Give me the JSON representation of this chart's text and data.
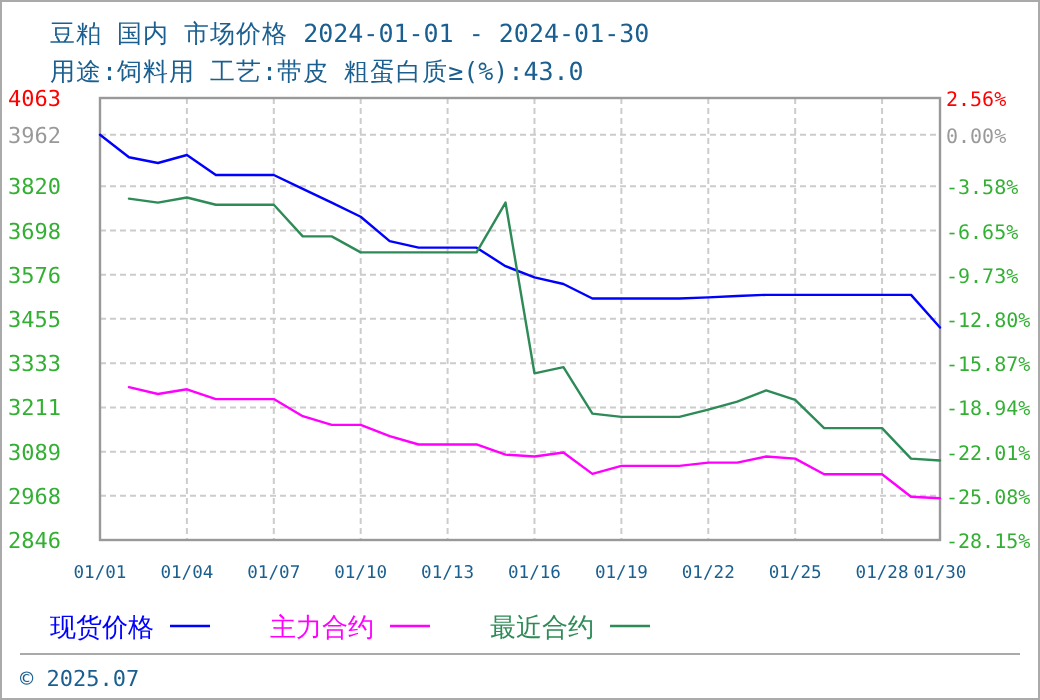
{
  "chart_data": {
    "type": "line",
    "title": "豆粕 国内 市场价格 2024-01-01 - 2024-01-30",
    "subtitle": "用途:饲料用 工艺:带皮 粗蛋白质≥(%):43.0",
    "x": [
      "2024-01-01",
      "2024-01-02",
      "2024-01-03",
      "2024-01-04",
      "2024-01-05",
      "2024-01-06",
      "2024-01-07",
      "2024-01-08",
      "2024-01-09",
      "2024-01-10",
      "2024-01-11",
      "2024-01-12",
      "2024-01-13",
      "2024-01-14",
      "2024-01-15",
      "2024-01-16",
      "2024-01-17",
      "2024-01-18",
      "2024-01-19",
      "2024-01-20",
      "2024-01-21",
      "2024-01-22",
      "2024-01-23",
      "2024-01-24",
      "2024-01-25",
      "2024-01-26",
      "2024-01-27",
      "2024-01-28",
      "2024-01-29",
      "2024-01-30"
    ],
    "series": [
      {
        "name": "现货价格",
        "color": "#0000ff",
        "values": [
          3962,
          3900,
          3884,
          3906,
          3851,
          3851,
          3851,
          3813,
          3775,
          3736,
          3669,
          3651,
          3651,
          3651,
          3600,
          3569,
          3551,
          3511,
          3511,
          3511,
          3511,
          3514,
          3518,
          3521,
          3521,
          3521,
          3521,
          3521,
          3521,
          3431
        ]
      },
      {
        "name": "主力合约",
        "color": "#ff00ff",
        "values": [
          null,
          3267,
          3248,
          3261,
          3234,
          3234,
          3234,
          3187,
          3163,
          3163,
          3132,
          3109,
          3109,
          3109,
          3081,
          3076,
          3087,
          3028,
          3050,
          3050,
          3050,
          3059,
          3059,
          3076,
          3070,
          3027,
          3027,
          3027,
          2965,
          2961
        ]
      },
      {
        "name": "最近合约",
        "color": "#2e8b57",
        "values": [
          null,
          3786,
          3775,
          3789,
          3769,
          3769,
          3769,
          3682,
          3682,
          3638,
          3638,
          3638,
          3638,
          3638,
          3775,
          3305,
          3322,
          3194,
          3185,
          3185,
          3185,
          3205,
          3227,
          3258,
          3232,
          3154,
          3154,
          3154,
          3070,
          3065
        ]
      }
    ],
    "xlim": [
      "2024-01-01",
      "2024-01-30"
    ],
    "xticks": [
      {
        "value": "2024-01-01",
        "label": "01/01"
      },
      {
        "value": "2024-01-04",
        "label": "01/04"
      },
      {
        "value": "2024-01-07",
        "label": "01/07"
      },
      {
        "value": "2024-01-10",
        "label": "01/10"
      },
      {
        "value": "2024-01-13",
        "label": "01/13"
      },
      {
        "value": "2024-01-16",
        "label": "01/16"
      },
      {
        "value": "2024-01-19",
        "label": "01/19"
      },
      {
        "value": "2024-01-22",
        "label": "01/22"
      },
      {
        "value": "2024-01-25",
        "label": "01/25"
      },
      {
        "value": "2024-01-28",
        "label": "01/28"
      },
      {
        "value": "2024-01-30",
        "label": "01/30"
      }
    ],
    "ylim": [
      2846,
      4063
    ],
    "yticks": [
      4063,
      3962,
      3820,
      3698,
      3576,
      3455,
      3333,
      3211,
      3089,
      2968,
      2846
    ],
    "y2lim": [
      -28.15,
      2.56
    ],
    "y2ticks": [
      {
        "value": 2.56,
        "label": "2.56%"
      },
      {
        "value": 0,
        "label": "0.00%"
      },
      {
        "value": -3.58,
        "label": "-3.58%"
      },
      {
        "value": -6.65,
        "label": "-6.65%"
      },
      {
        "value": -9.73,
        "label": "-9.73%"
      },
      {
        "value": -12.8,
        "label": "-12.80%"
      },
      {
        "value": -15.87,
        "label": "-15.87%"
      },
      {
        "value": -18.94,
        "label": "-18.94%"
      },
      {
        "value": -22.01,
        "label": "-22.01%"
      },
      {
        "value": -25.08,
        "label": "-25.08%"
      },
      {
        "value": -28.15,
        "label": "-28.15%"
      }
    ],
    "grid": true,
    "legend": "bottom",
    "marker": "none",
    "line_style": "solid",
    "annotations": [
      "© 2025.07"
    ]
  }
}
